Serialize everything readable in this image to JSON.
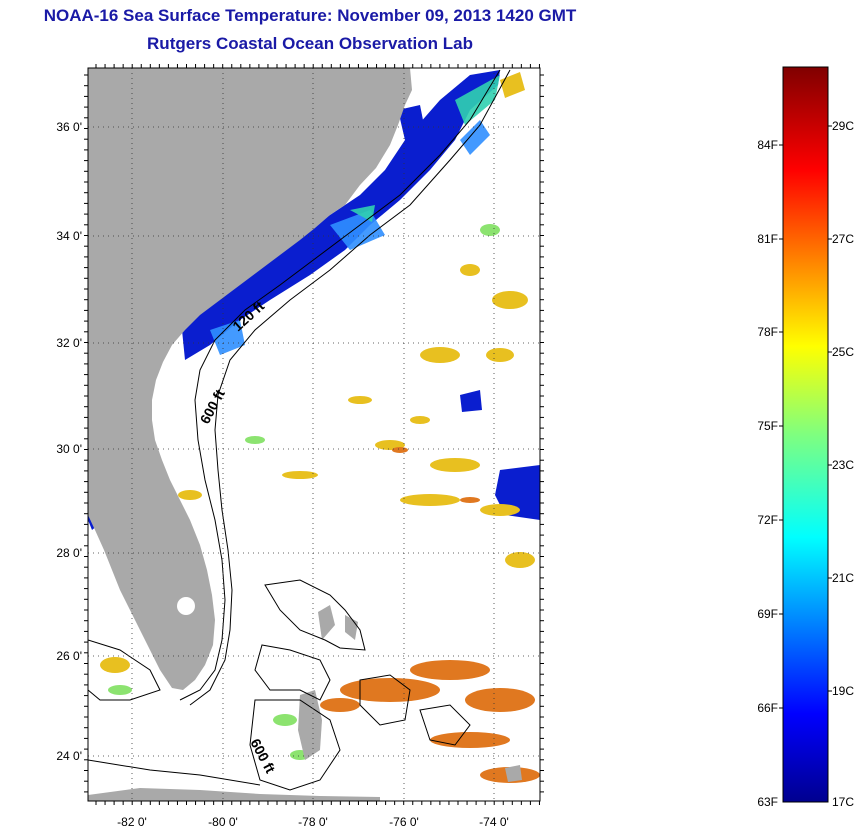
{
  "title": "NOAA-16 Sea Surface Temperature:  November 09, 2013 1420 GMT",
  "subtitle": "Rutgers Coastal Ocean Observation Lab",
  "map": {
    "lat_ticks": [
      "36 0'",
      "34 0'",
      "32 0'",
      "30 0'",
      "28 0'",
      "26 0'",
      "24 0'"
    ],
    "lon_ticks": [
      "-82 0'",
      "-80 0'",
      "-78 0'",
      "-76 0'",
      "-74 0'"
    ],
    "isobath_labels": [
      "120 ft",
      "600 ft",
      "600 ft"
    ],
    "colors": {
      "land": "#a9a9a9",
      "ocean_nodata": "#ffffff",
      "cold": "#0a1ecf",
      "warm": "#f0c020"
    }
  },
  "colorbar": {
    "fahrenheit_labels": [
      "84F",
      "81F",
      "78F",
      "75F",
      "72F",
      "69F",
      "66F",
      "63F"
    ],
    "celsius_labels": [
      "29C",
      "27C",
      "25C",
      "23C",
      "21C",
      "19C",
      "17C"
    ],
    "min_c": 17,
    "max_c": 30
  }
}
